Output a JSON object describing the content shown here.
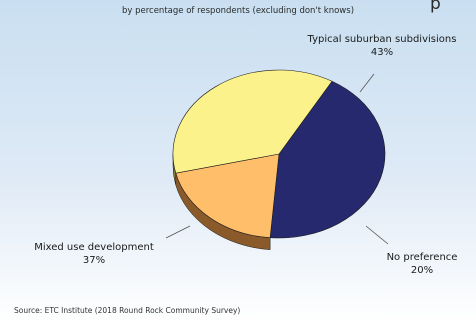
{
  "header": {
    "title_visible": "p",
    "subtitle": "by percentage of respondents (excluding don't knows)"
  },
  "footer": {
    "source": "Source:  ETC Institute (2018 Round Rock Community Survey)"
  },
  "chart_data": {
    "type": "pie",
    "style": "3d",
    "subtitle": "by percentage of respondents (excluding don't knows)",
    "slices": [
      {
        "label": "Typical suburban subdivisions",
        "value": 43,
        "value_label": "43%",
        "color": "#27296e",
        "side_color": "#151640"
      },
      {
        "label": "No preference",
        "value": 20,
        "value_label": "20%",
        "color": "#ffbe6a",
        "side_color": "#8a5a2a"
      },
      {
        "label": "Mixed use development",
        "value": 37,
        "value_label": "37%",
        "color": "#fbf28c",
        "side_color": "#82783a"
      }
    ]
  }
}
